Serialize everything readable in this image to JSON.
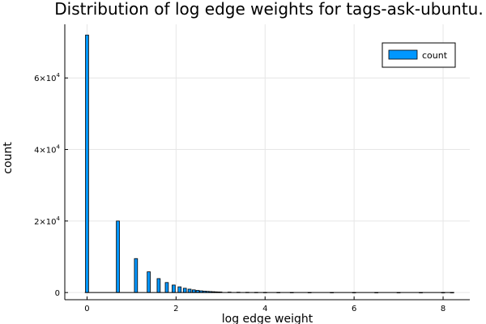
{
  "chart_data": {
    "type": "bar",
    "title": "Distribution of log edge weights for tags-ask-ubuntu.",
    "xlabel": "log edge weight",
    "ylabel": "count",
    "xlim": [
      -0.5,
      8.6
    ],
    "ylim": [
      -2000,
      75000
    ],
    "xticks": [
      0,
      2,
      4,
      6,
      8
    ],
    "xtick_labels": [
      "0",
      "2",
      "4",
      "6",
      "8"
    ],
    "yticks": [
      0,
      20000,
      40000,
      60000
    ],
    "ytick_labels": [
      {
        "base": "0",
        "exp": ""
      },
      {
        "base": "2×10",
        "exp": "4"
      },
      {
        "base": "4×10",
        "exp": "4"
      },
      {
        "base": "6×10",
        "exp": "4"
      }
    ],
    "grid": true,
    "legend_position": "top-right",
    "bar_color": "#0097ff",
    "bar_width": 0.07,
    "series": [
      {
        "name": "count",
        "x": [
          0,
          0.693,
          1.099,
          1.386,
          1.609,
          1.792,
          1.946,
          2.079,
          2.197,
          2.303,
          2.398,
          2.485,
          2.565,
          2.639,
          2.708,
          2.773,
          2.833,
          2.89,
          2.944,
          2.996,
          3.2,
          3.4,
          3.6,
          3.8,
          4.0,
          4.3,
          4.6,
          5.0,
          5.5,
          6.0,
          6.5,
          7.0,
          7.5,
          8.0,
          8.2
        ],
        "values": [
          72000,
          20000,
          9500,
          5800,
          3900,
          2800,
          2100,
          1600,
          1200,
          950,
          750,
          600,
          480,
          400,
          330,
          280,
          240,
          200,
          170,
          150,
          120,
          90,
          70,
          55,
          40,
          30,
          22,
          15,
          10,
          7,
          5,
          4,
          3,
          2,
          2
        ]
      }
    ]
  }
}
